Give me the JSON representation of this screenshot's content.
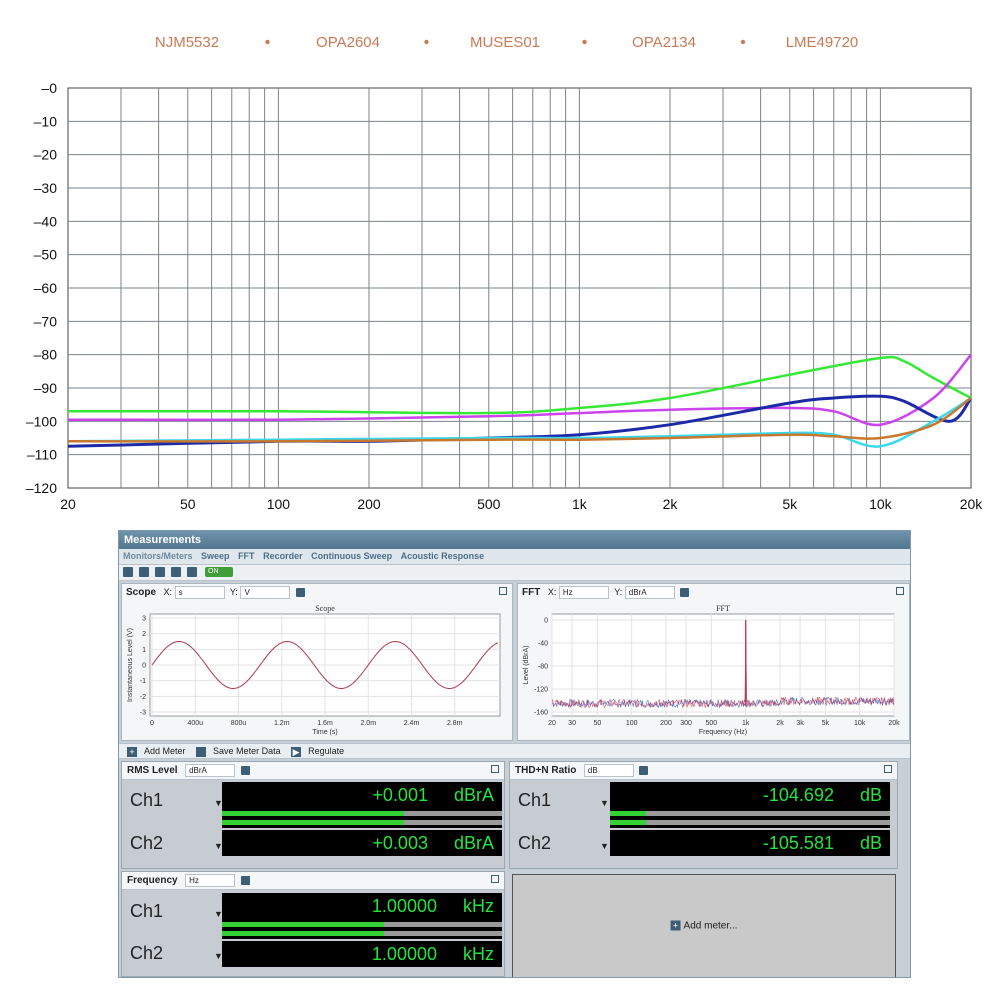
{
  "chart_data": {
    "type": "line",
    "title": "",
    "xlabel": "",
    "ylabel": "",
    "x_scale": "log",
    "xlim": [
      20,
      20000
    ],
    "ylim": [
      -120,
      0
    ],
    "grid": true,
    "legend_position": "top",
    "x_tick_labels": [
      "20",
      "50",
      "100",
      "200",
      "500",
      "1k",
      "2k",
      "5k",
      "10k",
      "20k"
    ],
    "x_tick_values": [
      20,
      50,
      100,
      200,
      500,
      1000,
      2000,
      5000,
      10000,
      20000
    ],
    "y_tick_labels": [
      "0",
      "-10",
      "-20",
      "-30",
      "-40",
      "-50",
      "-60",
      "-70",
      "-80",
      "-90",
      "-100",
      "-110",
      "-120"
    ],
    "y_tick_values": [
      0,
      -10,
      -20,
      -30,
      -40,
      -50,
      -60,
      -70,
      -80,
      -90,
      -100,
      -110,
      -120
    ],
    "legend": [
      "NJM5532",
      "OPA2604",
      "MUSES01",
      "OPA2134",
      "LME49720"
    ],
    "series": [
      {
        "color": "#36e836",
        "x": [
          20,
          100,
          500,
          1000,
          2000,
          5000,
          10000,
          12000,
          15000,
          20000
        ],
        "y": [
          -97,
          -97,
          -97.5,
          -96,
          -93,
          -86,
          -81,
          -82,
          -87,
          -93
        ]
      },
      {
        "color": "#cc44ee",
        "x": [
          20,
          100,
          500,
          1000,
          2000,
          5000,
          7000,
          10000,
          15000,
          20000
        ],
        "y": [
          -99.5,
          -99.5,
          -98.5,
          -97.5,
          -96.5,
          -96,
          -97,
          -101,
          -93,
          -80
        ]
      },
      {
        "color": "#1c2aa8",
        "x": [
          20,
          100,
          200,
          500,
          1000,
          2000,
          5000,
          7000,
          10000,
          12000,
          17000,
          20000
        ],
        "y": [
          -107.5,
          -106,
          -106,
          -105,
          -104,
          -101,
          -94.5,
          -93,
          -92.5,
          -94,
          -100,
          -93
        ]
      },
      {
        "color": "#3ad8ea",
        "x": [
          20,
          100,
          500,
          1000,
          2000,
          5000,
          7000,
          10000,
          15000,
          20000
        ],
        "y": [
          -106,
          -105.5,
          -105,
          -105,
          -104.5,
          -103.5,
          -104,
          -107.5,
          -100,
          -93
        ]
      },
      {
        "color": "#c8782e",
        "x": [
          20,
          100,
          500,
          1000,
          2000,
          5000,
          7000,
          10000,
          15000,
          20000
        ],
        "y": [
          -106,
          -106,
          -105.5,
          -105.5,
          -105,
          -104,
          -104.5,
          -105,
          -101,
          -93
        ]
      }
    ]
  },
  "app": {
    "window_title": "Measurements",
    "tabs": [
      "Monitors/Meters",
      "Sweep",
      "FFT",
      "Recorder",
      "Continuous Sweep",
      "Acoustic Response"
    ],
    "on_label": "ON"
  },
  "scope": {
    "title": "Scope",
    "x_label": "X:",
    "x_unit": "s",
    "y_label": "Y:",
    "y_unit": "V",
    "plot_title": "Scope",
    "x_axis_label": "Time (s)",
    "y_axis_label": "Instantaneous Level (V)",
    "x_ticks": [
      "0",
      "400u",
      "800u",
      "1.2m",
      "1.6m",
      "2.0m",
      "2.4m",
      "2.8m"
    ],
    "y_ticks": [
      "3",
      "2",
      "1",
      "0",
      "-1",
      "-2",
      "-3"
    ],
    "waveform_amplitude_v": 1.5,
    "waveform_frequency_hz": 1000,
    "x_range_s": [
      0,
      0.0032
    ]
  },
  "fft": {
    "title": "FFT",
    "x_label": "X:",
    "x_unit": "Hz",
    "y_label": "Y:",
    "y_unit": "dBrA",
    "plot_title": "FFT",
    "x_axis_label": "Frequency (Hz)",
    "y_axis_label": "Level (dBrA)",
    "x_ticks": [
      "20",
      "30",
      "50",
      "100",
      "200",
      "300",
      "500",
      "1k",
      "2k",
      "3k",
      "5k",
      "10k",
      "20k"
    ],
    "y_ticks": [
      "0",
      "-40",
      "-80",
      "-120",
      "-160"
    ],
    "peak_hz": 1000,
    "peak_db": 0
  },
  "meter_bar": {
    "add_meter": "Add Meter",
    "save_meter": "Save Meter Data",
    "regulate": "Regulate"
  },
  "rms": {
    "title": "RMS Level",
    "unit_select": "dBrA",
    "ch1_label": "Ch1",
    "ch2_label": "Ch2",
    "ch1_value": "+0.001",
    "ch2_value": "+0.003",
    "unit": "dBrA",
    "ch1_fill": 0.65,
    "ch2_fill": 0.65
  },
  "thd": {
    "title": "THD+N Ratio",
    "unit_select": "dB",
    "ch1_label": "Ch1",
    "ch2_label": "Ch2",
    "ch1_value": "-104.692",
    "ch2_value": "-105.581",
    "unit": "dB",
    "ch1_fill": 0.13,
    "ch2_fill": 0.13
  },
  "freq": {
    "title": "Frequency",
    "unit_select": "Hz",
    "ch1_label": "Ch1",
    "ch2_label": "Ch2",
    "ch1_value": "1.00000",
    "ch2_value": "1.00000",
    "unit": "kHz",
    "ch1_fill": 0.58,
    "ch2_fill": 0.58
  },
  "add_meter_panel": {
    "label": "Add meter..."
  }
}
